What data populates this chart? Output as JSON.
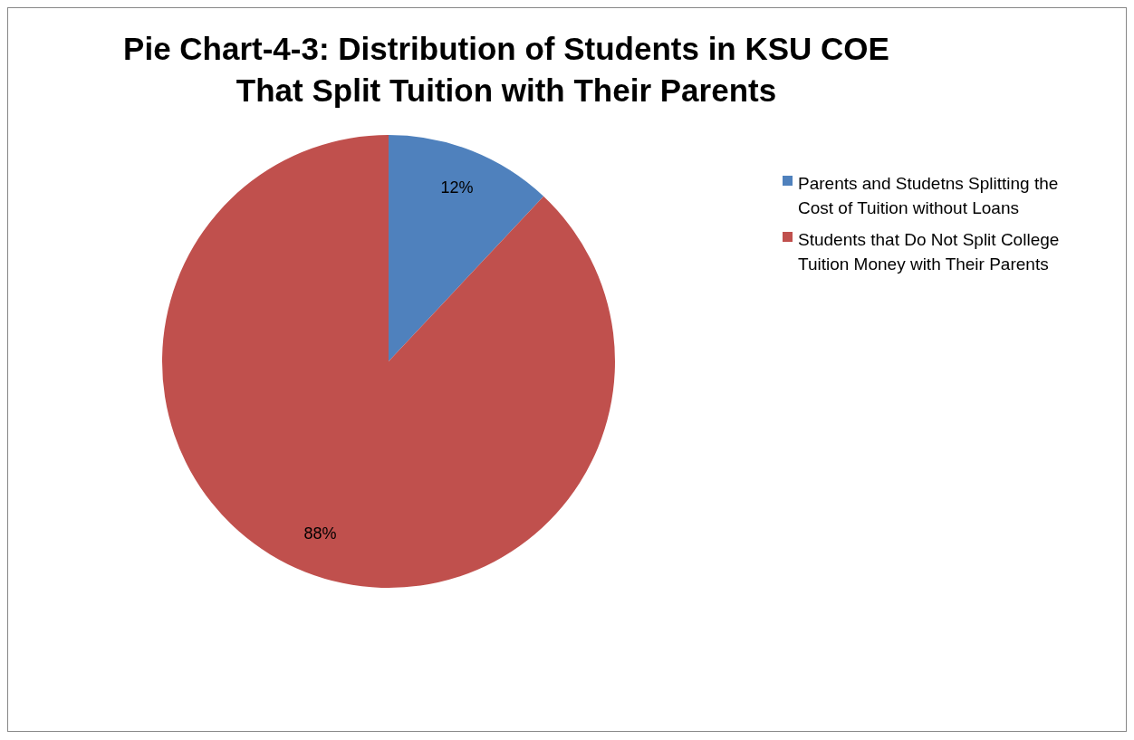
{
  "chart_data": {
    "type": "pie",
    "title": "Pie Chart-4-3: Distribution of Students in KSU COE That Split Tuition with Their Parents",
    "categories": [
      "Parents and Studetns Splitting the Cost of Tuition without Loans",
      "Students that Do Not Split College Tuition Money with Their Parents"
    ],
    "values": [
      12,
      88
    ],
    "value_labels": [
      "12%",
      "88%"
    ],
    "colors": [
      "#4f81bd",
      "#c0504d"
    ],
    "legend": "right"
  }
}
